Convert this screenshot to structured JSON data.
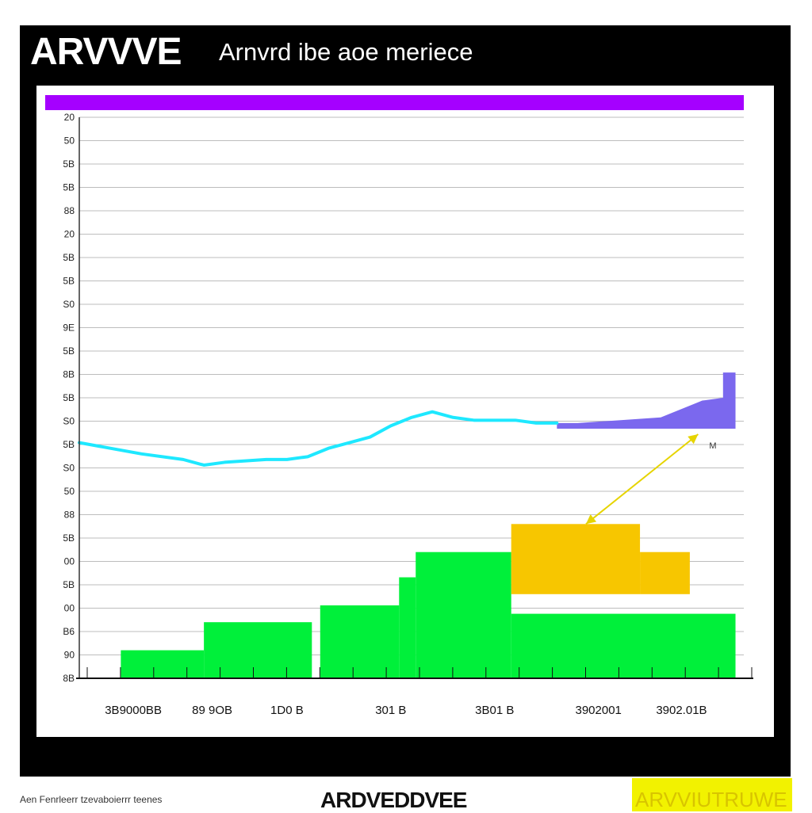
{
  "header": {
    "brand": "ARVVVE",
    "subtitle": "Arnvrd ibe aoe meriece"
  },
  "footer": {
    "left_text": "Aen Fenrleerr tzevaboierrr teenes",
    "center_text": "ARDVEDDVEE",
    "right_text": "ARVVIUTRUWE"
  },
  "colors": {
    "frame": "#000000",
    "banner": "#a500ff",
    "line": "#1ee8ff",
    "area": "#7b68ee",
    "bar_green": "#00f03a",
    "bar_yellow": "#f7c600",
    "arrow": "#e6d400",
    "grid": "#bdbdbd"
  },
  "chart_data": {
    "type": "bar",
    "title": "",
    "xlabel": "",
    "ylabel": "",
    "ylim": [
      0,
      20
    ],
    "y_tick_labels": [
      "8B",
      "90",
      "B6",
      "00",
      "5B",
      "00",
      "5B",
      "88",
      "50",
      "S0",
      "5B",
      "S0",
      "5B",
      "8B",
      "5B",
      "9E",
      "S0",
      "5B",
      "5B",
      "20",
      "88",
      "5B",
      "5B",
      "50",
      "20"
    ],
    "x_tick_labels": [
      "3B9000BB",
      "89 9OB",
      "1D0 B",
      "301 B",
      "3B01 B",
      "3902001",
      "3902.01B"
    ],
    "x_tick_positions": [
      1.3,
      3.2,
      5.0,
      7.5,
      10.0,
      12.5,
      14.5
    ],
    "xlim": [
      0,
      16
    ],
    "bars_green": [
      {
        "x0": 1.0,
        "x1": 3.0,
        "value": 1.0
      },
      {
        "x0": 3.0,
        "x1": 5.6,
        "value": 2.0
      },
      {
        "x0": 5.8,
        "x1": 7.7,
        "value": 2.6
      },
      {
        "x0": 7.7,
        "x1": 8.1,
        "value": 3.6
      },
      {
        "x0": 8.1,
        "x1": 10.4,
        "value": 4.5
      },
      {
        "x0": 10.4,
        "x1": 15.8,
        "value": 2.3
      }
    ],
    "bars_yellow": [
      {
        "x0": 10.4,
        "x1": 13.5,
        "bottom": 3.0,
        "value": 5.5
      },
      {
        "x0": 13.5,
        "x1": 14.7,
        "bottom": 3.0,
        "value": 4.5
      }
    ],
    "line_series": {
      "name": "",
      "x": [
        0.0,
        1.5,
        2.5,
        3.0,
        3.5,
        4.5,
        5.0,
        5.5,
        6.0,
        6.5,
        7.0,
        7.5,
        8.0,
        8.5,
        9.0,
        9.5,
        10.0,
        10.5,
        11.0,
        11.5
      ],
      "y": [
        8.4,
        8.0,
        7.8,
        7.6,
        7.7,
        7.8,
        7.8,
        7.9,
        8.2,
        8.4,
        8.6,
        9.0,
        9.3,
        9.5,
        9.3,
        9.2,
        9.2,
        9.2,
        9.1,
        9.1
      ]
    },
    "area_series": {
      "name": "",
      "x": [
        11.5,
        12.0,
        13.0,
        14.0,
        15.0,
        15.5,
        15.5,
        15.8,
        15.8
      ],
      "y": [
        9.1,
        9.1,
        9.2,
        9.3,
        9.9,
        10.0,
        10.9,
        10.9,
        8.9
      ]
    },
    "annotation": {
      "text": "M",
      "from": [
        12.2,
        5.5
      ],
      "to": [
        14.9,
        8.7
      ]
    },
    "legend": "none",
    "grid": true
  }
}
